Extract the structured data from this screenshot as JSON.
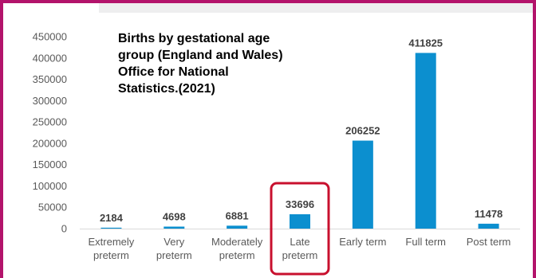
{
  "chart_data": {
    "type": "bar",
    "title": [
      "Births by gestational age",
      "group (England and Wales)",
      "Office for National",
      "Statistics.(2021)"
    ],
    "categories": [
      [
        "Extremely",
        "preterm"
      ],
      [
        "Very",
        "preterm"
      ],
      [
        "Moderately",
        "preterm"
      ],
      [
        "Late",
        "preterm"
      ],
      [
        "Early term"
      ],
      [
        "Full term"
      ],
      [
        "Post term"
      ]
    ],
    "values": [
      2184,
      4698,
      6881,
      33696,
      206252,
      411825,
      11478
    ],
    "data_labels": [
      "2184",
      "4698",
      "6881",
      "33696",
      "206252",
      "411825",
      "11478"
    ],
    "yticks": [
      "0",
      "50000",
      "100000",
      "150000",
      "200000",
      "250000",
      "300000",
      "350000",
      "400000",
      "450000"
    ],
    "ylim": [
      0,
      450000
    ],
    "xlabel": "",
    "ylabel": "",
    "grid": false,
    "bar_color": "#0c8fcf",
    "highlight": {
      "category_index": 3,
      "color": "#c8102e"
    },
    "frame_color": "#b3136b"
  }
}
